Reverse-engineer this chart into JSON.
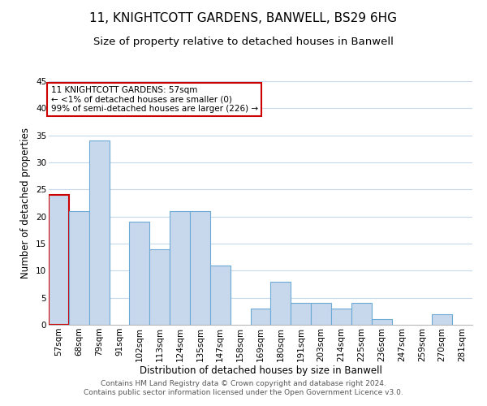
{
  "title": "11, KNIGHTCOTT GARDENS, BANWELL, BS29 6HG",
  "subtitle": "Size of property relative to detached houses in Banwell",
  "xlabel": "Distribution of detached houses by size in Banwell",
  "ylabel": "Number of detached properties",
  "bar_labels": [
    "57sqm",
    "68sqm",
    "79sqm",
    "91sqm",
    "102sqm",
    "113sqm",
    "124sqm",
    "135sqm",
    "147sqm",
    "158sqm",
    "169sqm",
    "180sqm",
    "191sqm",
    "203sqm",
    "214sqm",
    "225sqm",
    "236sqm",
    "247sqm",
    "259sqm",
    "270sqm",
    "281sqm"
  ],
  "bar_values": [
    24,
    21,
    34,
    0,
    19,
    14,
    21,
    21,
    11,
    0,
    3,
    8,
    4,
    4,
    3,
    4,
    1,
    0,
    0,
    2,
    0
  ],
  "bar_color": "#c8d8ec",
  "bar_edge_color": "#6aaad4",
  "highlight_bar_index": 0,
  "highlight_edge_color": "#cc0000",
  "ylim": [
    0,
    45
  ],
  "yticks": [
    0,
    5,
    10,
    15,
    20,
    25,
    30,
    35,
    40,
    45
  ],
  "annotation_box_text": "11 KNIGHTCOTT GARDENS: 57sqm\n← <1% of detached houses are smaller (0)\n99% of semi-detached houses are larger (226) →",
  "annotation_box_edge": "#cc0000",
  "footer_line1": "Contains HM Land Registry data © Crown copyright and database right 2024.",
  "footer_line2": "Contains public sector information licensed under the Open Government Licence v3.0.",
  "bg_color": "#ffffff",
  "grid_color": "#c8d8ec",
  "title_fontsize": 11,
  "subtitle_fontsize": 9.5,
  "axis_label_fontsize": 8.5,
  "tick_fontsize": 7.5,
  "annotation_fontsize": 7.5,
  "footer_fontsize": 6.5
}
